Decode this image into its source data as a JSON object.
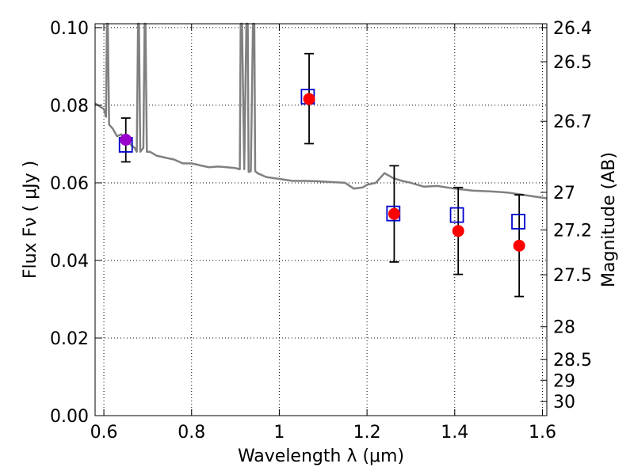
{
  "chart_data": {
    "type": "scatter",
    "title": "",
    "xlabel": "Wavelength  λ (μm)",
    "ylabel": "Flux  Fν  ( μJy )",
    "y2label": "Magnitude (AB)",
    "xlim": [
      0.58,
      1.61
    ],
    "ylim": [
      0.0,
      0.101
    ],
    "grid": true,
    "legend": "none",
    "x_ticks": [
      {
        "value": 0.6,
        "label": "0.6"
      },
      {
        "value": 0.8,
        "label": "0.8"
      },
      {
        "value": 1.0,
        "label": "1"
      },
      {
        "value": 1.2,
        "label": "1.2"
      },
      {
        "value": 1.4,
        "label": "1.4"
      },
      {
        "value": 1.6,
        "label": "1.6"
      }
    ],
    "y_ticks": [
      {
        "value": 0.0,
        "label": "0.00"
      },
      {
        "value": 0.02,
        "label": "0.02"
      },
      {
        "value": 0.04,
        "label": "0.04"
      },
      {
        "value": 0.06,
        "label": "0.06"
      },
      {
        "value": 0.08,
        "label": "0.08"
      },
      {
        "value": 0.1,
        "label": "0.10"
      }
    ],
    "y2_ticks": [
      {
        "mag": 26.4,
        "label": "26.4"
      },
      {
        "mag": 26.5,
        "label": "26.5"
      },
      {
        "mag": 26.7,
        "label": "26.7"
      },
      {
        "mag": 27.0,
        "label": "27"
      },
      {
        "mag": 27.2,
        "label": "27.2"
      },
      {
        "mag": 27.5,
        "label": "27.5"
      },
      {
        "mag": 28.0,
        "label": "28"
      },
      {
        "mag": 28.5,
        "label": "28.5"
      },
      {
        "mag": 29.0,
        "label": "29"
      },
      {
        "mag": 30.0,
        "label": "30"
      }
    ],
    "model_color": "#808080",
    "model_spectrum": {
      "x": [
        0.58,
        0.6,
        0.605,
        0.607,
        0.609,
        0.612,
        0.62,
        0.63,
        0.64,
        0.65,
        0.66,
        0.67,
        0.675,
        0.678,
        0.68,
        0.683,
        0.69,
        0.693,
        0.695,
        0.698,
        0.7,
        0.705,
        0.72,
        0.74,
        0.76,
        0.78,
        0.8,
        0.82,
        0.84,
        0.86,
        0.88,
        0.9,
        0.91,
        0.912,
        0.915,
        0.92,
        0.925,
        0.928,
        0.93,
        0.935,
        0.94,
        0.943,
        0.945,
        0.95,
        0.97,
        1.0,
        1.03,
        1.06,
        1.09,
        1.12,
        1.15,
        1.17,
        1.19,
        1.2,
        1.22,
        1.24,
        1.26,
        1.28,
        1.3,
        1.33,
        1.36,
        1.4,
        1.44,
        1.48,
        1.52,
        1.55,
        1.58,
        1.61
      ],
      "y": [
        0.0805,
        0.079,
        0.077,
        0.101,
        0.101,
        0.075,
        0.074,
        0.072,
        0.0725,
        0.071,
        0.07,
        0.069,
        0.068,
        0.101,
        0.101,
        0.068,
        0.069,
        0.101,
        0.101,
        0.068,
        0.068,
        0.068,
        0.067,
        0.0665,
        0.066,
        0.065,
        0.065,
        0.0645,
        0.064,
        0.0642,
        0.064,
        0.0638,
        0.0635,
        0.101,
        0.101,
        0.0635,
        0.101,
        0.101,
        0.0628,
        0.063,
        0.101,
        0.101,
        0.063,
        0.0625,
        0.0615,
        0.061,
        0.0605,
        0.0605,
        0.0604,
        0.0602,
        0.06,
        0.0585,
        0.0588,
        0.0595,
        0.06,
        0.0625,
        0.0612,
        0.0605,
        0.06,
        0.059,
        0.0592,
        0.0585,
        0.058,
        0.0578,
        0.0575,
        0.057,
        0.0565,
        0.056
      ]
    },
    "series": [
      {
        "marker": "open-square",
        "color": "#0000cc",
        "points": [
          {
            "x": 0.65,
            "y": 0.0698
          },
          {
            "x": 1.065,
            "y": 0.0822
          },
          {
            "x": 1.26,
            "y": 0.0521
          },
          {
            "x": 1.405,
            "y": 0.0517
          },
          {
            "x": 1.545,
            "y": 0.05
          }
        ]
      },
      {
        "marker": "filled-circle",
        "color": "#ff0000",
        "points": [
          {
            "x": 1.068,
            "y": 0.0816
          },
          {
            "x": 1.262,
            "y": 0.052
          },
          {
            "x": 1.408,
            "y": 0.0476
          },
          {
            "x": 1.547,
            "y": 0.0438
          }
        ]
      },
      {
        "marker": "filled-circle",
        "color": "#9900cc",
        "points": [
          {
            "x": 0.65,
            "y": 0.0711
          }
        ]
      }
    ],
    "error_bars": [
      {
        "x": 0.65,
        "y": 0.0712,
        "low": 0.0654,
        "high": 0.0767
      },
      {
        "x": 1.068,
        "y": 0.0816,
        "low": 0.0701,
        "high": 0.0933
      },
      {
        "x": 1.262,
        "y": 0.052,
        "low": 0.0396,
        "high": 0.0644
      },
      {
        "x": 1.408,
        "y": 0.0476,
        "low": 0.0364,
        "high": 0.0588
      },
      {
        "x": 1.547,
        "y": 0.0438,
        "low": 0.0307,
        "high": 0.0569
      }
    ]
  }
}
